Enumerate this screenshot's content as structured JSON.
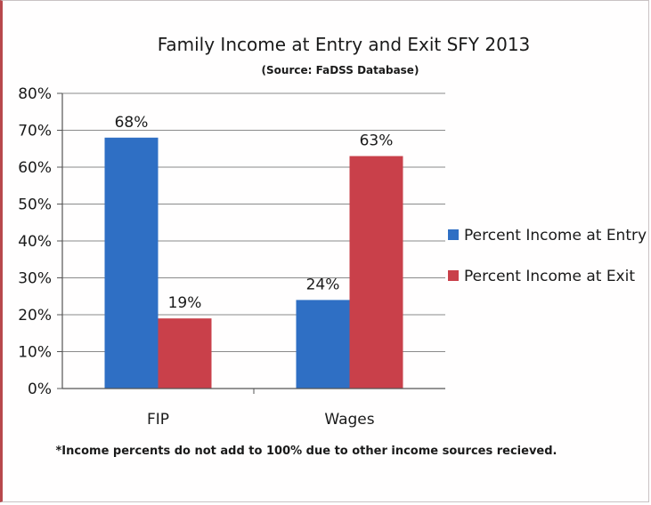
{
  "chart_data": {
    "type": "bar",
    "title": "Family Income at Entry and Exit SFY 2013",
    "subtitle": "(Source: FaDSS Database)",
    "categories": [
      "FIP",
      "Wages"
    ],
    "series": [
      {
        "name": "Percent Income at Entry",
        "values": [
          68,
          24
        ],
        "labels": [
          "68%",
          "24%"
        ],
        "color": "#2f6fc4"
      },
      {
        "name": "Percent Income at Exit",
        "values": [
          19,
          63
        ],
        "labels": [
          "19%",
          "63%"
        ],
        "color": "#c9404a"
      }
    ],
    "ylim": [
      0,
      80
    ],
    "yticks": [
      "0%",
      "10%",
      "20%",
      "30%",
      "40%",
      "50%",
      "60%",
      "70%",
      "80%"
    ],
    "xlabel": "",
    "ylabel": "",
    "grid": true,
    "legend_position": "right",
    "footnote": "*Income percents do not add to 100% due to other income sources recieved."
  }
}
